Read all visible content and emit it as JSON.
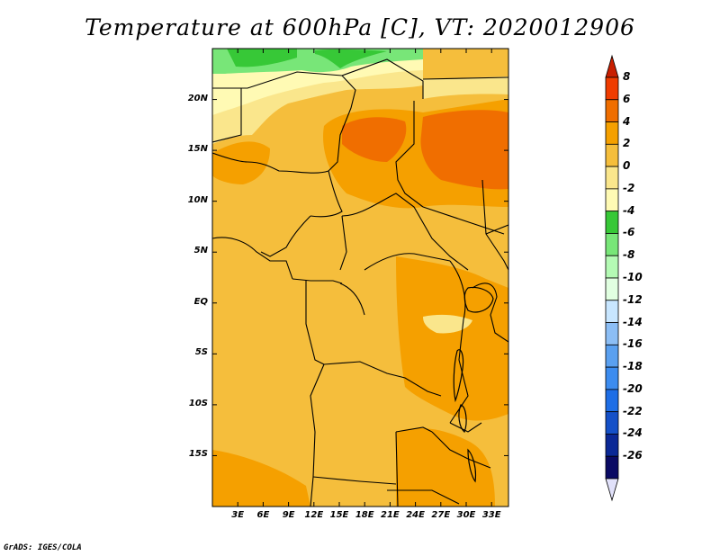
{
  "title": "Temperature at 600hPa [C], VT: 2020012906",
  "credit": "GrADS: IGES/COLA",
  "map": {
    "lon_labels": [
      "3E",
      "6E",
      "9E",
      "12E",
      "15E",
      "18E",
      "21E",
      "24E",
      "27E",
      "30E",
      "33E"
    ],
    "lat_labels": [
      "20N",
      "15N",
      "10N",
      "5N",
      "EQ",
      "5S",
      "10S",
      "15S"
    ],
    "lon_range": [
      0,
      35
    ],
    "lat_range": [
      -20,
      25
    ]
  },
  "colorbar": {
    "labels": [
      "8",
      "6",
      "4",
      "2",
      "0",
      "-2",
      "-4",
      "-6",
      "-8",
      "-10",
      "-12",
      "-14",
      "-16",
      "-18",
      "-20",
      "-22",
      "-24",
      "-26"
    ],
    "colors": [
      "#c81e00",
      "#f03c00",
      "#f06e00",
      "#f5a000",
      "#f5be3c",
      "#fae68c",
      "#fffab4",
      "#37c837",
      "#78e678",
      "#b4fab4",
      "#e1ffe1",
      "#c8e6ff",
      "#8cbef5",
      "#5aa0f0",
      "#3c8cf0",
      "#1e6ee6",
      "#1450c8",
      "#0a2896",
      "#0a0a64",
      "#e1e1fa"
    ]
  },
  "fill_colors": {
    "base": "#f5be3c",
    "warm": "#f5a000",
    "hot": "#f06e00",
    "cool": "#fae68c",
    "cooler": "#fffab4",
    "green_dark": "#37c837",
    "green_light": "#78e678"
  }
}
